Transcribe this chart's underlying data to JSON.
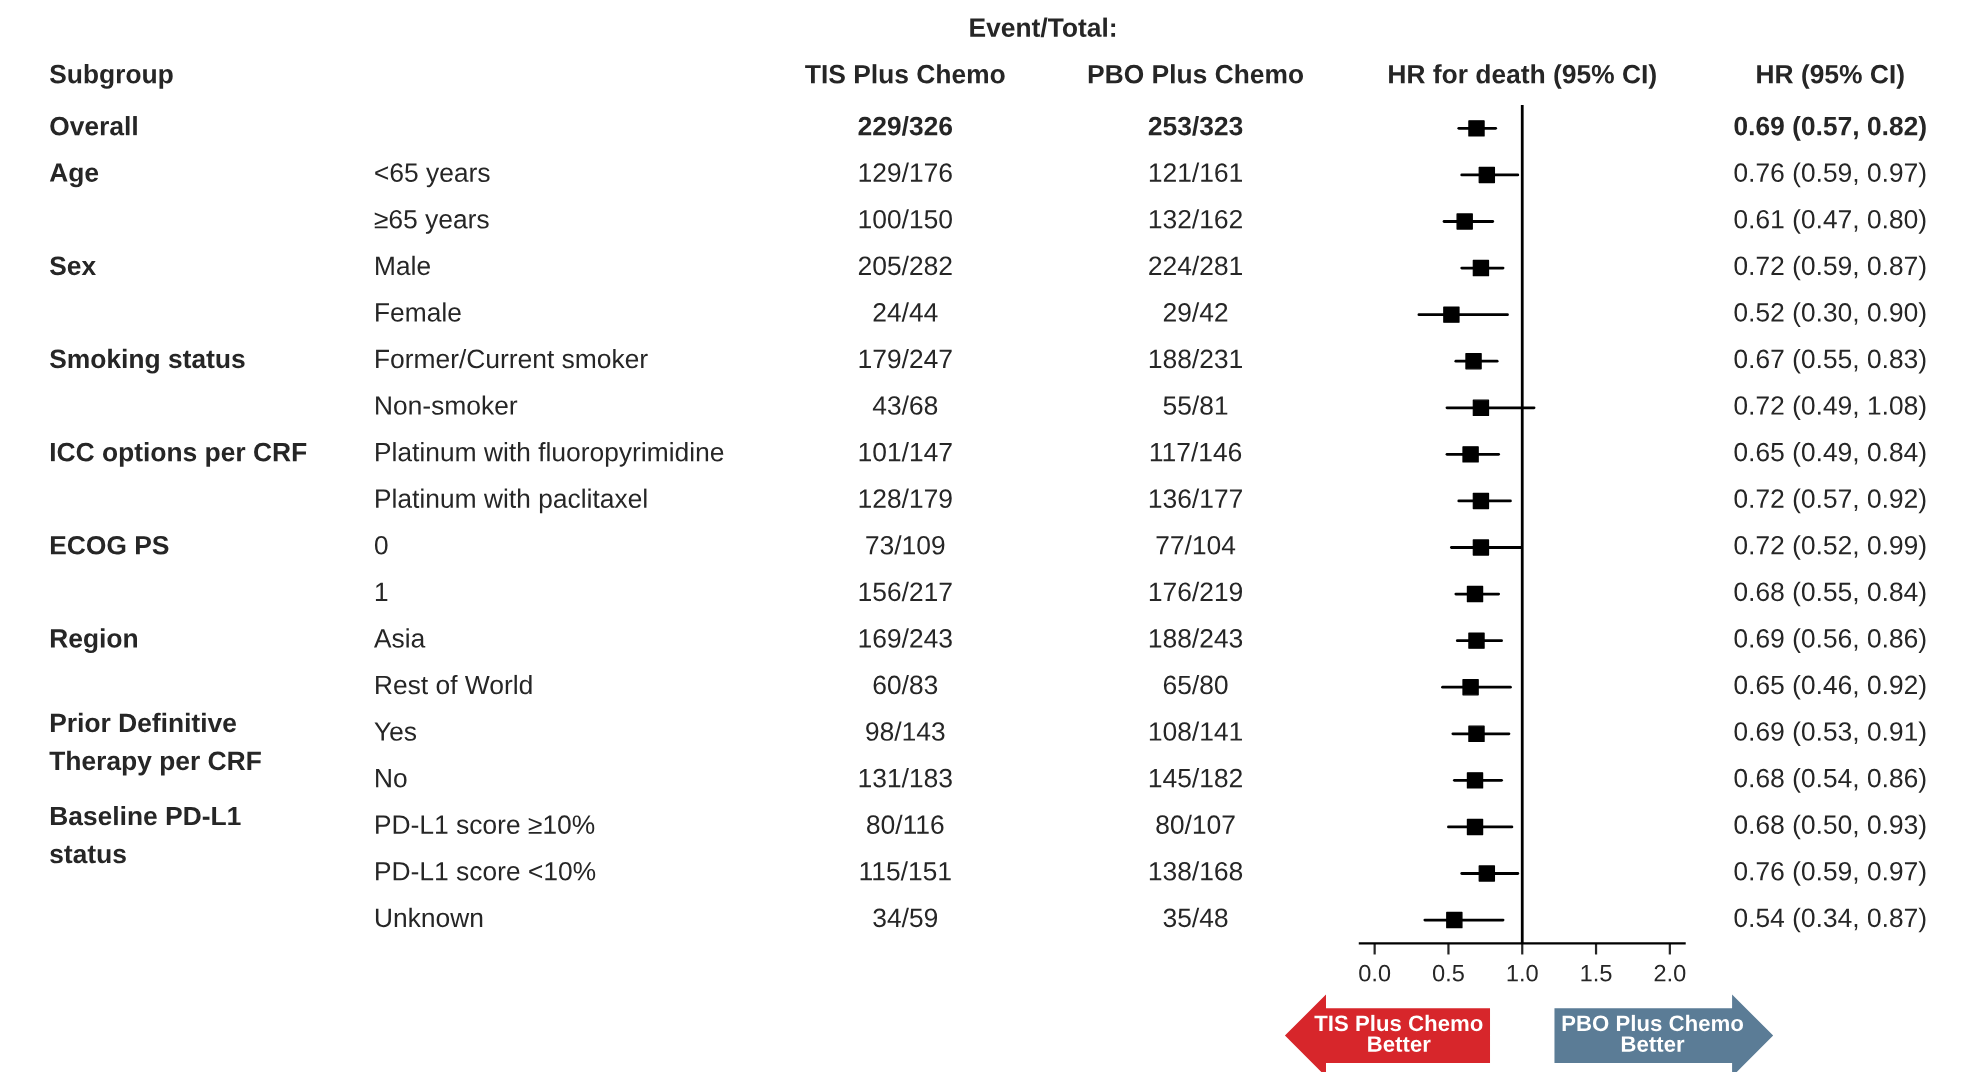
{
  "chart_data": [
    {
      "type": "other",
      "title": "Subgroup",
      "categories": [
        "Overall",
        "Age",
        null,
        "Sex",
        null,
        "Smoking status",
        null,
        "ICC options per CRF",
        null,
        "ECOG PS",
        null,
        "Region",
        null,
        "Prior Definitive\nTherapy per CRF",
        null,
        "Baseline PD-L1\nstatus",
        null,
        null
      ]
    },
    {
      "type": "other",
      "categories": [
        null,
        "<65 years",
        "≥65 years",
        "Male",
        "Female",
        "Former/Current smoker",
        "Non-smoker",
        "Platinum with fluoropyrimidine",
        "Platinum with paclitaxel",
        "0",
        "1",
        "Asia",
        "Rest of World",
        "Yes",
        "No",
        "PD-L1 score ≥10%",
        "PD-L1 score <10%",
        "Unknown"
      ]
    },
    {
      "type": "other",
      "title": "TIS Plus Chemo",
      "annotations": [
        "Event/Total:"
      ],
      "categories": [
        "229/326",
        "129/176",
        "100/150",
        "205/282",
        "24/44",
        "179/247",
        "43/68",
        "101/147",
        "128/179",
        "73/109",
        "156/217",
        "169/243",
        "60/83",
        "98/143",
        "131/183",
        "80/116",
        "115/151",
        "34/59"
      ]
    },
    {
      "type": "other",
      "title": "PBO Plus Chemo",
      "categories": [
        "253/323",
        "121/161",
        "132/162",
        "224/281",
        "29/42",
        "188/231",
        "55/81",
        "117/146",
        "136/177",
        "77/104",
        "176/219",
        "188/243",
        "65/80",
        "108/141",
        "145/182",
        "80/107",
        "138/168",
        "35/48"
      ]
    },
    {
      "type": "scatter",
      "orientation": "horizontal",
      "title": "HR for death (95% CI)",
      "marker": "square",
      "color": "#000000",
      "categories": [
        null,
        null,
        null,
        null,
        null,
        null,
        null,
        null,
        null,
        null,
        null,
        null,
        null,
        null,
        null,
        null,
        null,
        null
      ],
      "values": [
        0.69,
        0.76,
        0.61,
        0.72,
        0.52,
        0.67,
        0.72,
        0.65,
        0.72,
        0.72,
        0.68,
        0.69,
        0.65,
        0.69,
        0.68,
        0.68,
        0.76,
        0.54
      ],
      "errors": [
        [
          0.57,
          0.82
        ],
        [
          0.59,
          0.97
        ],
        [
          0.47,
          0.8
        ],
        [
          0.59,
          0.87
        ],
        [
          0.3,
          0.9
        ],
        [
          0.55,
          0.83
        ],
        [
          0.49,
          1.08
        ],
        [
          0.49,
          0.84
        ],
        [
          0.57,
          0.92
        ],
        [
          0.52,
          0.99
        ],
        [
          0.55,
          0.84
        ],
        [
          0.56,
          0.86
        ],
        [
          0.46,
          0.92
        ],
        [
          0.53,
          0.91
        ],
        [
          0.54,
          0.86
        ],
        [
          0.5,
          0.93
        ],
        [
          0.59,
          0.97
        ],
        [
          0.34,
          0.87
        ]
      ],
      "xlim": [
        -0.1,
        2.1
      ],
      "xticks": [
        {
          "value": 0,
          "label": "0.0"
        },
        {
          "value": 0.5,
          "label": "0.5"
        },
        {
          "value": 1,
          "label": "1.0"
        },
        {
          "value": 1.5,
          "label": "1.5"
        },
        {
          "value": 2,
          "label": "2.0"
        }
      ],
      "ref_lines": [
        {
          "axis": "x",
          "value": 1,
          "color": "#000000"
        }
      ],
      "annotations": [
        "TIS Plus Chemo\nBetter",
        "PBO Plus Chemo\nBetter"
      ],
      "tick_labels": "x",
      "grid": false
    },
    {
      "type": "other",
      "title": "HR (95% CI)",
      "categories": [
        "0.69 (0.57, 0.82)",
        "0.76 (0.59, 0.97)",
        "0.61 (0.47, 0.80)",
        "0.72 (0.59, 0.87)",
        "0.52 (0.30, 0.90)",
        "0.67 (0.55, 0.83)",
        "0.72 (0.49, 1.08)",
        "0.65 (0.49, 0.84)",
        "0.72 (0.57, 0.92)",
        "0.72 (0.52, 0.99)",
        "0.68 (0.55, 0.84)",
        "0.69 (0.56, 0.86)",
        "0.65 (0.46, 0.92)",
        "0.69 (0.53, 0.91)",
        "0.68 (0.54, 0.86)",
        "0.68 (0.50, 0.93)",
        "0.76 (0.59, 0.97)",
        "0.54 (0.34, 0.87)"
      ]
    }
  ]
}
